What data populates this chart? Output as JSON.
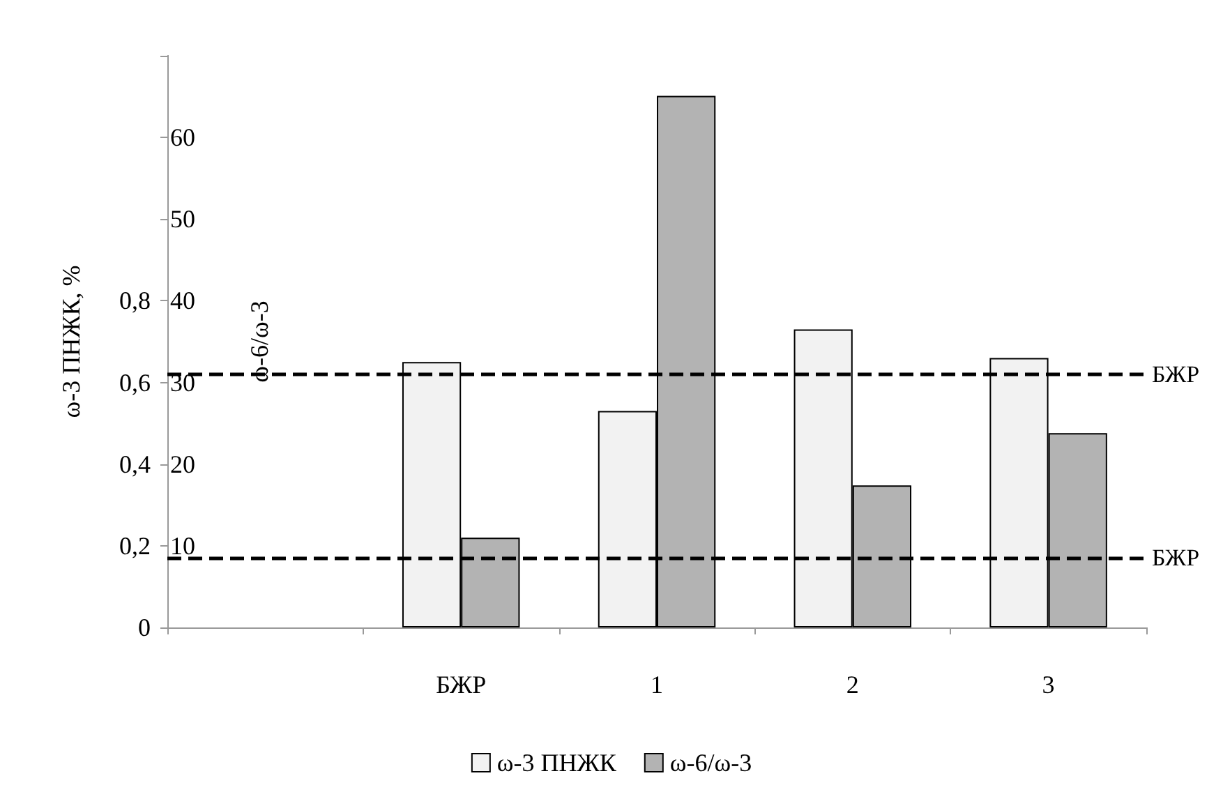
{
  "chart_data": {
    "type": "bar",
    "categories": [
      null,
      "БЖР",
      "1",
      "2",
      "3"
    ],
    "ylabel": "ω-3 ПНЖК, %",
    "y2label": "ω-6/ω-3",
    "series": [
      {
        "name": "ω-3 ПНЖК",
        "color": "#f2f2f2",
        "values": [
          null,
          0.65,
          0.53,
          0.73,
          0.66
        ]
      },
      {
        "name": "ω-6/ω-3",
        "color": "#b3b3b3",
        "axis": "y2",
        "values": [
          null,
          11.0,
          65.1,
          17.4,
          23.8
        ]
      }
    ],
    "ylim": [
      0,
      1.4
    ],
    "yticks": [
      0,
      {
        "value": 0.2,
        "label": "0,2"
      },
      {
        "value": 0.4,
        "label": "0,4"
      },
      {
        "value": 0.6,
        "label": "0,6"
      },
      {
        "value": 0.8,
        "label": "0,8"
      }
    ],
    "y2lim": [
      0,
      70
    ],
    "y2ticks": [
      10,
      20,
      30,
      40,
      50,
      60,
      {
        "value": 70,
        "label": null
      }
    ],
    "ref_lines": [
      {
        "axis": "y",
        "value": 0.62,
        "label": "БЖР",
        "line_style": "dashed",
        "color": "#000000"
      },
      {
        "axis": "y2",
        "value": 8.5,
        "label": "БЖР",
        "line_style": "dashed",
        "color": "#000000"
      }
    ],
    "grid": false,
    "legend": "bottom"
  }
}
